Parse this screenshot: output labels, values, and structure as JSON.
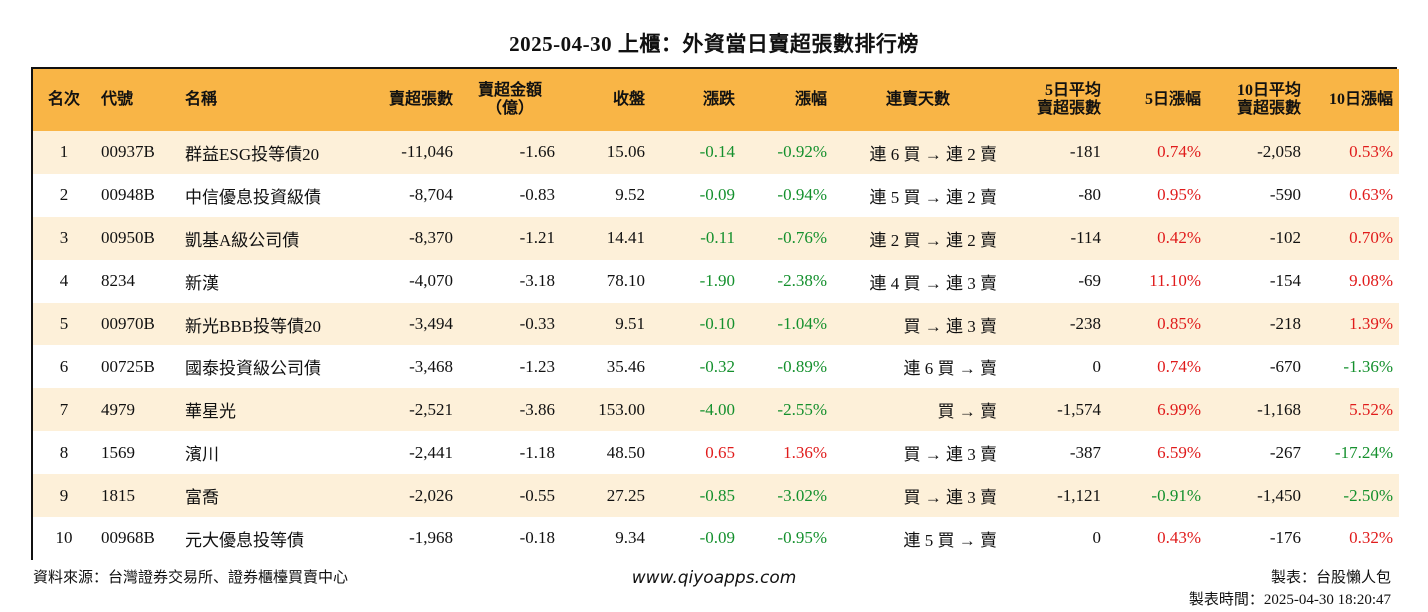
{
  "title": "2025-04-30 上櫃：外資當日賣超張數排行榜",
  "headers": {
    "rank": "名次",
    "code": "代號",
    "name": "名稱",
    "sell_lots": "賣超張數",
    "sell_amount_1": "賣超金額",
    "sell_amount_2": "（億）",
    "close": "收盤",
    "change": "漲跌",
    "change_pct": "漲幅",
    "streak": "連賣天數",
    "avg5_1": "5日平均",
    "avg5_2": "賣超張數",
    "chg5": "5日漲幅",
    "avg10_1": "10日平均",
    "avg10_2": "賣超張數",
    "chg10": "10日漲幅"
  },
  "rows": [
    {
      "rank": "1",
      "code": "00937B",
      "name": "群益ESG投等債20",
      "sell_lots": "-11,046",
      "sell_amount": "-1.66",
      "close": "15.06",
      "change": "-0.14",
      "change_pct": "-0.92%",
      "streak": "連 6 買 → 連 2 賣",
      "avg5": "-181",
      "chg5": "0.74%",
      "avg10": "-2,058",
      "chg10": "0.53%"
    },
    {
      "rank": "2",
      "code": "00948B",
      "name": "中信優息投資級債",
      "sell_lots": "-8,704",
      "sell_amount": "-0.83",
      "close": "9.52",
      "change": "-0.09",
      "change_pct": "-0.94%",
      "streak": "連 5 買 → 連 2 賣",
      "avg5": "-80",
      "chg5": "0.95%",
      "avg10": "-590",
      "chg10": "0.63%"
    },
    {
      "rank": "3",
      "code": "00950B",
      "name": "凱基A級公司債",
      "sell_lots": "-8,370",
      "sell_amount": "-1.21",
      "close": "14.41",
      "change": "-0.11",
      "change_pct": "-0.76%",
      "streak": "連 2 買 → 連 2 賣",
      "avg5": "-114",
      "chg5": "0.42%",
      "avg10": "-102",
      "chg10": "0.70%"
    },
    {
      "rank": "4",
      "code": "8234",
      "name": "新漢",
      "sell_lots": "-4,070",
      "sell_amount": "-3.18",
      "close": "78.10",
      "change": "-1.90",
      "change_pct": "-2.38%",
      "streak": "連 4 買 → 連 3 賣",
      "avg5": "-69",
      "chg5": "11.10%",
      "avg10": "-154",
      "chg10": "9.08%"
    },
    {
      "rank": "5",
      "code": "00970B",
      "name": "新光BBB投等債20",
      "sell_lots": "-3,494",
      "sell_amount": "-0.33",
      "close": "9.51",
      "change": "-0.10",
      "change_pct": "-1.04%",
      "streak": "買 → 連 3 賣",
      "avg5": "-238",
      "chg5": "0.85%",
      "avg10": "-218",
      "chg10": "1.39%"
    },
    {
      "rank": "6",
      "code": "00725B",
      "name": "國泰投資級公司債",
      "sell_lots": "-3,468",
      "sell_amount": "-1.23",
      "close": "35.46",
      "change": "-0.32",
      "change_pct": "-0.89%",
      "streak": "連 6 買 → 賣",
      "avg5": "0",
      "chg5": "0.74%",
      "avg10": "-670",
      "chg10": "-1.36%"
    },
    {
      "rank": "7",
      "code": "4979",
      "name": "華星光",
      "sell_lots": "-2,521",
      "sell_amount": "-3.86",
      "close": "153.00",
      "change": "-4.00",
      "change_pct": "-2.55%",
      "streak": "買 → 賣",
      "avg5": "-1,574",
      "chg5": "6.99%",
      "avg10": "-1,168",
      "chg10": "5.52%"
    },
    {
      "rank": "8",
      "code": "1569",
      "name": "濱川",
      "sell_lots": "-2,441",
      "sell_amount": "-1.18",
      "close": "48.50",
      "change": "0.65",
      "change_pct": "1.36%",
      "streak": "買 → 連 3 賣",
      "avg5": "-387",
      "chg5": "6.59%",
      "avg10": "-267",
      "chg10": "-17.24%"
    },
    {
      "rank": "9",
      "code": "1815",
      "name": "富喬",
      "sell_lots": "-2,026",
      "sell_amount": "-0.55",
      "close": "27.25",
      "change": "-0.85",
      "change_pct": "-3.02%",
      "streak": "買 → 連 3 賣",
      "avg5": "-1,121",
      "chg5": "-0.91%",
      "avg10": "-1,450",
      "chg10": "-2.50%"
    },
    {
      "rank": "10",
      "code": "00968B",
      "name": "元大優息投等債",
      "sell_lots": "-1,968",
      "sell_amount": "-0.18",
      "close": "9.34",
      "change": "-0.09",
      "change_pct": "-0.95%",
      "streak": "連 5 買 → 賣",
      "avg5": "0",
      "chg5": "0.43%",
      "avg10": "-176",
      "chg10": "0.32%"
    }
  ],
  "footer": {
    "source": "資料來源：台灣證券交易所、證券櫃檯買賣中心",
    "website": "www.qiyoapps.com",
    "maker": "製表：台股懶人包",
    "made_time": "製表時間：2025-04-30 18:20:47"
  },
  "colors": {
    "header_bg": "#f9b546",
    "row_alt_bg": "#fdf0d9",
    "negative": "#14902d",
    "positive": "#e01b1b"
  }
}
